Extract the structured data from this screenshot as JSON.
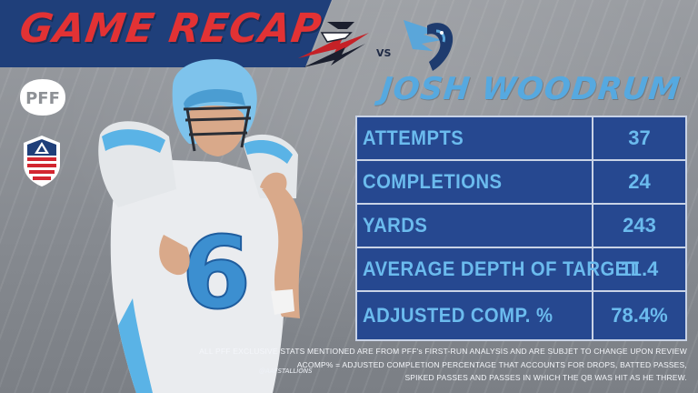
{
  "header": {
    "title": "GAME RECAP",
    "vs_text": "VS"
  },
  "logos": {
    "pff": "PFF",
    "team_left_icon": "orlando-apollos-logo",
    "team_right_icon": "salt-lake-stallions-logo",
    "league_icon": "aaf-logo"
  },
  "player": {
    "name": "JOSH WOODRUM",
    "jersey_number": "6",
    "photo_credit": "@AAFSTALLIONS"
  },
  "stats": [
    {
      "label": "ATTEMPTS",
      "value": "37"
    },
    {
      "label": "COMPLETIONS",
      "value": "24"
    },
    {
      "label": "YARDS",
      "value": "243"
    },
    {
      "label": "AVERAGE DEPTH OF TARGET",
      "value": "11.4"
    },
    {
      "label": "ADJUSTED COMP. %",
      "value": "78.4%"
    }
  ],
  "footnotes": {
    "line1": "ALL PFF EXCLUSIVE STATS MENTIONED ARE FROM PFF's FIRST-RUN ANALYSIS AND ARE SUBJET TO CHANGE UPON REVIEW",
    "line2": "ACOMP% = ADJUSTED COMPLETION PERCENTAGE THAT ACCOUNTS FOR DROPS, BATTED PASSES,",
    "line3": "SPIKED PASSES AND PASSES IN WHICH THE QB WAS HIT AS HE THREW."
  },
  "colors": {
    "header_red": "#e23234",
    "navy": "#1f3f7a",
    "table_blue": "#264890",
    "accent_light_blue": "#6bbbee"
  }
}
